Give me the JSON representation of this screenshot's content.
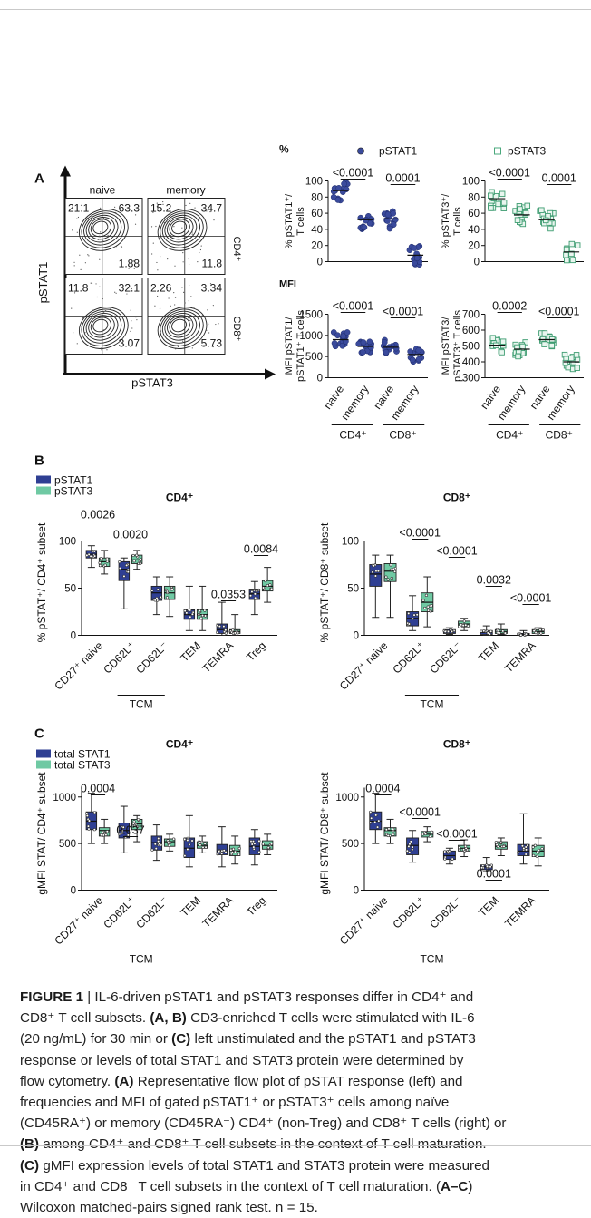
{
  "figure": {
    "panel_labels": [
      "A",
      "B",
      "C"
    ],
    "panelA": {
      "flow": {
        "col_headers": [
          "naive",
          "memory"
        ],
        "row_labels": [
          "CD4⁺",
          "CD8⁺"
        ],
        "y_axis": "pSTAT1",
        "x_axis": "pSTAT3",
        "quadrant_values": [
          [
            "21.1",
            "63.3",
            "1.88",
            "15.2",
            "34.7",
            "11.8"
          ],
          [
            "11.8",
            "32.1",
            "3.07",
            "2.26",
            "3.34",
            "5.73"
          ]
        ]
      },
      "percent_heading": "%",
      "mfi_heading": "MFI",
      "legend": [
        "pSTAT1",
        "pSTAT3"
      ],
      "group_labels": [
        "naive",
        "memory",
        "naive",
        "memory"
      ],
      "bracket_labels": [
        "CD4⁺",
        "CD8⁺"
      ]
    },
    "panelB": {
      "legend": [
        "pSTAT1",
        "pSTAT3"
      ],
      "sub_group_label": "TCM"
    },
    "panelC": {
      "legend": [
        "total STAT1",
        "total STAT3"
      ],
      "sub_group_label": "TCM"
    }
  },
  "chart_data": [
    {
      "id": "A-pct-pstat1",
      "type": "scatter",
      "ylabel": "% pSTAT1⁺/ T cells",
      "ylim": [
        0,
        100
      ],
      "yticks": [
        0,
        20,
        40,
        60,
        80,
        100
      ],
      "categories": [
        "naive",
        "memory",
        "naive",
        "memory"
      ],
      "center": [
        88,
        52,
        53,
        8
      ],
      "pvalues": [
        "<0.0001",
        "0.0001"
      ]
    },
    {
      "id": "A-pct-pstat3",
      "type": "scatter",
      "ylabel": "% pSTAT3⁺/ T cells",
      "ylim": [
        0,
        100
      ],
      "yticks": [
        0,
        20,
        40,
        60,
        80,
        100
      ],
      "categories": [
        "naive",
        "memory",
        "naive",
        "memory"
      ],
      "center": [
        78,
        58,
        52,
        12
      ],
      "pvalues": [
        "<0.0001",
        "0.0001"
      ]
    },
    {
      "id": "A-mfi-pstat1",
      "type": "scatter",
      "ylabel": "MFI pSTAT1/ pSTAT1⁺ T cells",
      "ylim": [
        0,
        1500
      ],
      "yticks": [
        0,
        500,
        1000,
        1500
      ],
      "categories": [
        "naive",
        "memory",
        "naive",
        "memory"
      ],
      "center": [
        900,
        740,
        720,
        550
      ],
      "pvalues": [
        "<0.0001",
        "<0.0001"
      ]
    },
    {
      "id": "A-mfi-pstat3",
      "type": "scatter",
      "ylabel": "MFI pSTAT3/ pSTAT3⁺ T cells",
      "ylim": [
        300,
        700
      ],
      "yticks": [
        300,
        400,
        500,
        600,
        700
      ],
      "categories": [
        "naive",
        "memory",
        "naive",
        "memory"
      ],
      "center": [
        505,
        480,
        540,
        400
      ],
      "pvalues": [
        "0.0002",
        "<0.0001"
      ]
    },
    {
      "id": "B-CD4",
      "type": "box",
      "title": "CD4⁺",
      "ylabel": "% pSTAT⁺/ CD4⁺ subset",
      "ylim": [
        0,
        100
      ],
      "yticks": [
        0,
        50,
        100
      ],
      "categories": [
        "CD27⁺ naive",
        "CD62L⁺",
        "CD62L⁻",
        "TEM",
        "TEMRA",
        "Treg"
      ],
      "series": [
        {
          "name": "pSTAT1",
          "q": [
            [
              72,
              82,
              86,
              90,
              95
            ],
            [
              28,
              58,
              70,
              78,
              82
            ],
            [
              22,
              37,
              45,
              52,
              62
            ],
            [
              5,
              17,
              22,
              27,
              52
            ],
            [
              0,
              2,
              6,
              12,
              35
            ],
            [
              22,
              38,
              44,
              49,
              57
            ]
          ]
        },
        {
          "name": "pSTAT3",
          "q": [
            [
              65,
              73,
              78,
              82,
              90
            ],
            [
              70,
              76,
              80,
              85,
              90
            ],
            [
              20,
              38,
              45,
              52,
              62
            ],
            [
              5,
              17,
              22,
              27,
              52
            ],
            [
              0,
              2,
              4,
              6,
              22
            ],
            [
              35,
              47,
              52,
              58,
              72
            ]
          ]
        }
      ],
      "pvalues": [
        "0.0026",
        "0.0020",
        "0.0353",
        "0.0084"
      ]
    },
    {
      "id": "B-CD8",
      "type": "box",
      "title": "CD8⁺",
      "ylabel": "% pSTAT⁺/ CD8⁺ subset",
      "ylim": [
        0,
        100
      ],
      "yticks": [
        0,
        50,
        100
      ],
      "categories": [
        "CD27⁺ naive",
        "CD62L⁺",
        "CD62L⁻",
        "TEM",
        "TEMRA"
      ],
      "series": [
        {
          "name": "pSTAT1",
          "q": [
            [
              19,
              52,
              65,
              75,
              85
            ],
            [
              5,
              10,
              18,
              25,
              42
            ],
            [
              1,
              2,
              4,
              6,
              8
            ],
            [
              0,
              1,
              3,
              5,
              10
            ],
            [
              0,
              0,
              1,
              2,
              5
            ]
          ]
        },
        {
          "name": "pSTAT3",
          "q": [
            [
              19,
              57,
              68,
              76,
              85
            ],
            [
              9,
              25,
              35,
              45,
              62
            ],
            [
              5,
              9,
              12,
              15,
              18
            ],
            [
              1,
              2,
              4,
              6,
              12
            ],
            [
              0,
              2,
              4,
              6,
              8
            ]
          ]
        }
      ],
      "pvalues": [
        "<0.0001",
        "<0.0001",
        "0.0032",
        "<0.0001"
      ]
    },
    {
      "id": "C-CD4",
      "type": "box",
      "title": "CD4⁺",
      "ylabel": "gMFI STAT/ CD4⁺ subset",
      "ylim": [
        0,
        1100
      ],
      "yticks": [
        0,
        500,
        1000
      ],
      "categories": [
        "CD27⁺ naive",
        "CD62L⁺",
        "CD62L⁻",
        "TEM",
        "TEMRA",
        "Treg"
      ],
      "series": [
        {
          "name": "total STAT1",
          "q": [
            [
              500,
              650,
              740,
              840,
              1040
            ],
            [
              400,
              560,
              640,
              720,
              900
            ],
            [
              320,
              430,
              510,
              580,
              700
            ],
            [
              250,
              350,
              450,
              560,
              800
            ],
            [
              250,
              380,
              420,
              490,
              680
            ],
            [
              270,
              380,
              470,
              560,
              650
            ]
          ]
        },
        {
          "name": "total STAT3",
          "q": [
            [
              500,
              580,
              640,
              670,
              760
            ],
            [
              520,
              650,
              710,
              760,
              800
            ],
            [
              420,
              470,
              520,
              550,
              600
            ],
            [
              400,
              450,
              480,
              520,
              580
            ],
            [
              280,
              370,
              420,
              480,
              580
            ],
            [
              380,
              440,
              480,
              530,
              600
            ]
          ]
        }
      ],
      "pvalues": [
        "0.0004",
        "0.037"
      ]
    },
    {
      "id": "C-CD8",
      "type": "box",
      "title": "CD8⁺",
      "ylabel": "gMFI STAT/ CD8⁺ subset",
      "ylim": [
        0,
        1100
      ],
      "yticks": [
        0,
        500,
        1000
      ],
      "categories": [
        "CD27⁺ naive",
        "CD62L⁺",
        "CD62L⁻",
        "TEM",
        "TEMRA"
      ],
      "series": [
        {
          "name": "total STAT1",
          "q": [
            [
              500,
              650,
              740,
              840,
              1040
            ],
            [
              300,
              380,
              480,
              560,
              640
            ],
            [
              280,
              330,
              370,
              420,
              450
            ],
            [
              200,
              220,
              250,
              270,
              350
            ],
            [
              280,
              370,
              420,
              490,
              820
            ]
          ]
        },
        {
          "name": "total STAT3",
          "q": [
            [
              500,
              580,
              640,
              670,
              760
            ],
            [
              520,
              570,
              600,
              630,
              680
            ],
            [
              360,
              420,
              450,
              480,
              540
            ],
            [
              370,
              440,
              470,
              520,
              560
            ],
            [
              260,
              360,
              420,
              480,
              560
            ]
          ]
        }
      ],
      "pvalues": [
        "0.0004",
        "<0.0001",
        "<0.0001",
        "0.0001"
      ]
    }
  ],
  "caption": {
    "lines": [
      [
        "",
        "FIGURE 1",
        " | IL-6-driven pSTAT1 and pSTAT3 responses differ in CD4⁺ and"
      ],
      [
        "CD8⁺ T cell subsets. ",
        "(A, B)",
        " CD3-enriched T cells were stimulated with IL-6"
      ],
      [
        "(20 ng/mL) for 30 min or ",
        "(C)",
        " left unstimulated and the pSTAT1 and pSTAT3"
      ],
      [
        "response or levels of total STAT1 and STAT3 protein were determined by",
        "",
        ""
      ],
      [
        "flow cytometry. ",
        "(A)",
        " Representative flow plot of pSTAT response (left) and"
      ],
      [
        "frequencies and MFI of gated pSTAT1⁺ or pSTAT3⁺ cells among naïve",
        "",
        ""
      ],
      [
        "(CD45RA⁺) or memory (CD45RA⁻) CD4⁺ (non-Treg) and CD8⁺ T cells (right) or",
        "",
        ""
      ],
      [
        "",
        "(B)",
        " among CD4⁺ and CD8⁺ T cell subsets in the context of T cell maturation."
      ],
      [
        "",
        "(C)",
        " gMFI expression levels of total STAT1 and STAT3 protein were measured"
      ],
      [
        "in CD4⁺ and CD8⁺ T cell subsets in the context of T cell maturation. (",
        "A–C",
        ")"
      ],
      [
        "Wilcoxon matched-pairs signed rank test. n = 15.",
        "",
        ""
      ]
    ]
  },
  "colors": {
    "stat1": "#2f3f93",
    "stat3": "#6fc9a3",
    "dot1": "#3a4a9c",
    "dot3": "#6cc49f"
  }
}
